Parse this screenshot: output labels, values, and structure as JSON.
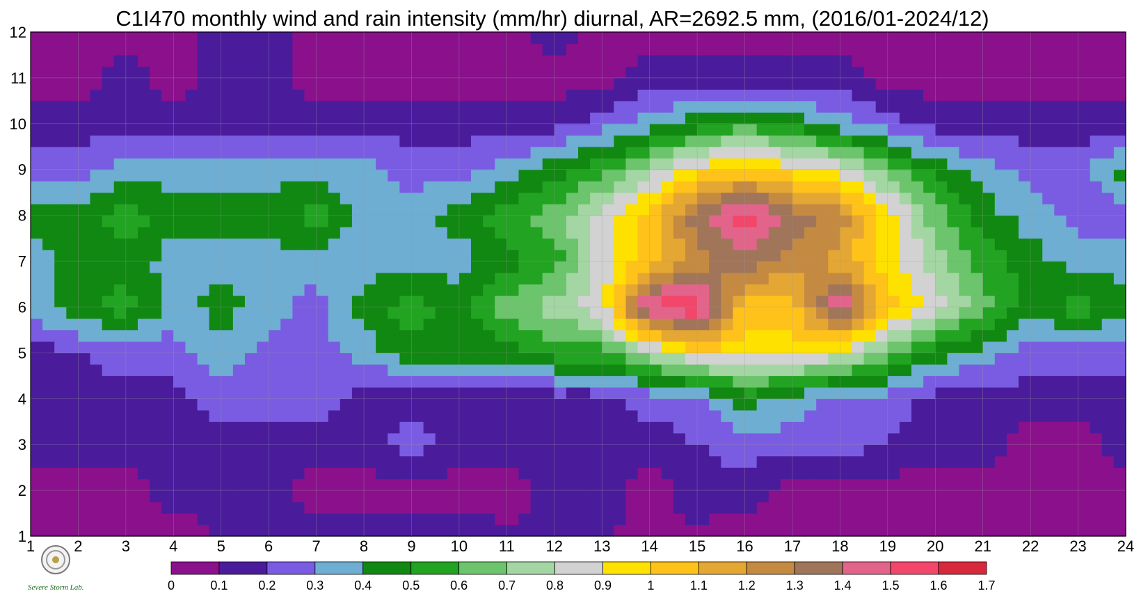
{
  "title": "C1I470 monthly wind and rain intensity (mm/hr) diurnal, AR=2692.5 mm, (2016/01-2024/12)",
  "logo": {
    "text": "Severe Storm Lab."
  },
  "chart_data": {
    "type": "heatmap",
    "title": "C1I470 monthly wind and rain intensity (mm/hr) diurnal, AR=2692.5 mm, (2016/01-2024/12)",
    "x": [
      1,
      2,
      3,
      4,
      5,
      6,
      7,
      8,
      9,
      10,
      11,
      12,
      13,
      14,
      15,
      16,
      17,
      18,
      19,
      20,
      21,
      22,
      23,
      24
    ],
    "y": [
      1,
      2,
      3,
      4,
      5,
      6,
      7,
      8,
      9,
      10,
      11,
      12
    ],
    "x_ticks": [
      "1",
      "2",
      "3",
      "4",
      "5",
      "6",
      "7",
      "8",
      "9",
      "10",
      "11",
      "12",
      "13",
      "14",
      "15",
      "16",
      "17",
      "18",
      "19",
      "20",
      "21",
      "22",
      "23",
      "24"
    ],
    "y_ticks": [
      "1",
      "2",
      "3",
      "4",
      "5",
      "6",
      "7",
      "8",
      "9",
      "10",
      "11",
      "12"
    ],
    "xlim": [
      1,
      24
    ],
    "ylim": [
      1,
      12
    ],
    "grid": true,
    "colorbar": {
      "levels": [
        0,
        0.1,
        0.2,
        0.3,
        0.4,
        0.5,
        0.6,
        0.7,
        0.8,
        0.9,
        1,
        1.1,
        1.2,
        1.3,
        1.4,
        1.5,
        1.6,
        1.7
      ],
      "labels": [
        "0",
        "0.1",
        "0.2",
        "0.3",
        "0.4",
        "0.5",
        "0.6",
        "0.7",
        "0.8",
        "0.9",
        "1",
        "1.1",
        "1.2",
        "1.3",
        "1.4",
        "1.5",
        "1.6",
        "1.7"
      ],
      "colors": [
        "#8a108c",
        "#4a1c9c",
        "#7a5ce2",
        "#6eaed2",
        "#118811",
        "#22a322",
        "#6cc46c",
        "#a3d6a3",
        "#d2d2d2",
        "#ffe100",
        "#ffc21a",
        "#e4a733",
        "#c48a42",
        "#a0755a",
        "#e2648a",
        "#f2466a",
        "#d8283c"
      ]
    },
    "values": [
      [
        0.02,
        0.05,
        0.05,
        0.05,
        0.1,
        0.1,
        0.15,
        0.15,
        0.15,
        0.15,
        0.12,
        0.12,
        0.1,
        0.08,
        0.08,
        0.04,
        0.02,
        0.02,
        0.02,
        0.02,
        0.02,
        0.02,
        0.04,
        0.05
      ],
      [
        0.05,
        0.05,
        0.05,
        0.15,
        0.15,
        0.15,
        0.05,
        0.05,
        0.05,
        0.05,
        0.05,
        0.15,
        0.15,
        0.05,
        0.15,
        0.15,
        0.05,
        0.05,
        0.05,
        0.05,
        0.05,
        0.05,
        0.05,
        0.05
      ],
      [
        0.15,
        0.15,
        0.15,
        0.15,
        0.15,
        0.15,
        0.15,
        0.15,
        0.25,
        0.15,
        0.15,
        0.15,
        0.15,
        0.15,
        0.2,
        0.25,
        0.25,
        0.25,
        0.2,
        0.15,
        0.15,
        0.05,
        0.05,
        0.15
      ],
      [
        0.15,
        0.15,
        0.15,
        0.15,
        0.25,
        0.25,
        0.25,
        0.15,
        0.15,
        0.15,
        0.15,
        0.15,
        0.15,
        0.25,
        0.25,
        0.45,
        0.35,
        0.25,
        0.25,
        0.15,
        0.15,
        0.15,
        0.15,
        0.15
      ],
      [
        0.15,
        0.2,
        0.25,
        0.25,
        0.35,
        0.25,
        0.25,
        0.35,
        0.45,
        0.45,
        0.45,
        0.55,
        0.55,
        0.75,
        0.95,
        0.95,
        0.95,
        0.85,
        0.65,
        0.45,
        0.35,
        0.25,
        0.25,
        0.25
      ],
      [
        0.35,
        0.45,
        0.55,
        0.35,
        0.45,
        0.35,
        0.25,
        0.45,
        0.55,
        0.45,
        0.65,
        0.75,
        0.85,
        1.55,
        1.6,
        1.05,
        1.05,
        1.5,
        1.05,
        0.85,
        0.65,
        0.45,
        0.55,
        0.45
      ],
      [
        0.35,
        0.45,
        0.45,
        0.35,
        0.35,
        0.35,
        0.35,
        0.35,
        0.35,
        0.35,
        0.45,
        0.55,
        0.85,
        1.05,
        1.25,
        1.35,
        1.25,
        1.15,
        0.95,
        0.75,
        0.55,
        0.45,
        0.35,
        0.35
      ],
      [
        0.45,
        0.45,
        0.55,
        0.45,
        0.45,
        0.45,
        0.55,
        0.35,
        0.35,
        0.45,
        0.55,
        0.65,
        0.85,
        1.05,
        1.35,
        1.55,
        1.35,
        1.25,
        0.95,
        0.65,
        0.45,
        0.35,
        0.25,
        0.25
      ],
      [
        0.25,
        0.25,
        0.35,
        0.35,
        0.35,
        0.35,
        0.35,
        0.35,
        0.25,
        0.25,
        0.35,
        0.45,
        0.55,
        0.75,
        0.95,
        1.05,
        0.95,
        0.85,
        0.65,
        0.45,
        0.35,
        0.25,
        0.25,
        0.45
      ],
      [
        0.15,
        0.15,
        0.15,
        0.15,
        0.15,
        0.15,
        0.15,
        0.15,
        0.15,
        0.15,
        0.15,
        0.15,
        0.25,
        0.35,
        0.45,
        0.55,
        0.45,
        0.35,
        0.25,
        0.15,
        0.15,
        0.15,
        0.15,
        0.15
      ],
      [
        0.05,
        0.05,
        0.15,
        0.05,
        0.15,
        0.15,
        0.05,
        0.05,
        0.05,
        0.05,
        0.05,
        0.05,
        0.05,
        0.15,
        0.15,
        0.15,
        0.15,
        0.15,
        0.05,
        0.05,
        0.05,
        0.05,
        0.05,
        0.05
      ],
      [
        0.05,
        0.05,
        0.05,
        0.05,
        0.15,
        0.15,
        0.05,
        0.05,
        0.05,
        0.05,
        0.05,
        0.15,
        0.05,
        0.05,
        0.05,
        0.05,
        0.05,
        0.05,
        0.05,
        0.05,
        0.05,
        0.05,
        0.05,
        0.05
      ]
    ]
  }
}
